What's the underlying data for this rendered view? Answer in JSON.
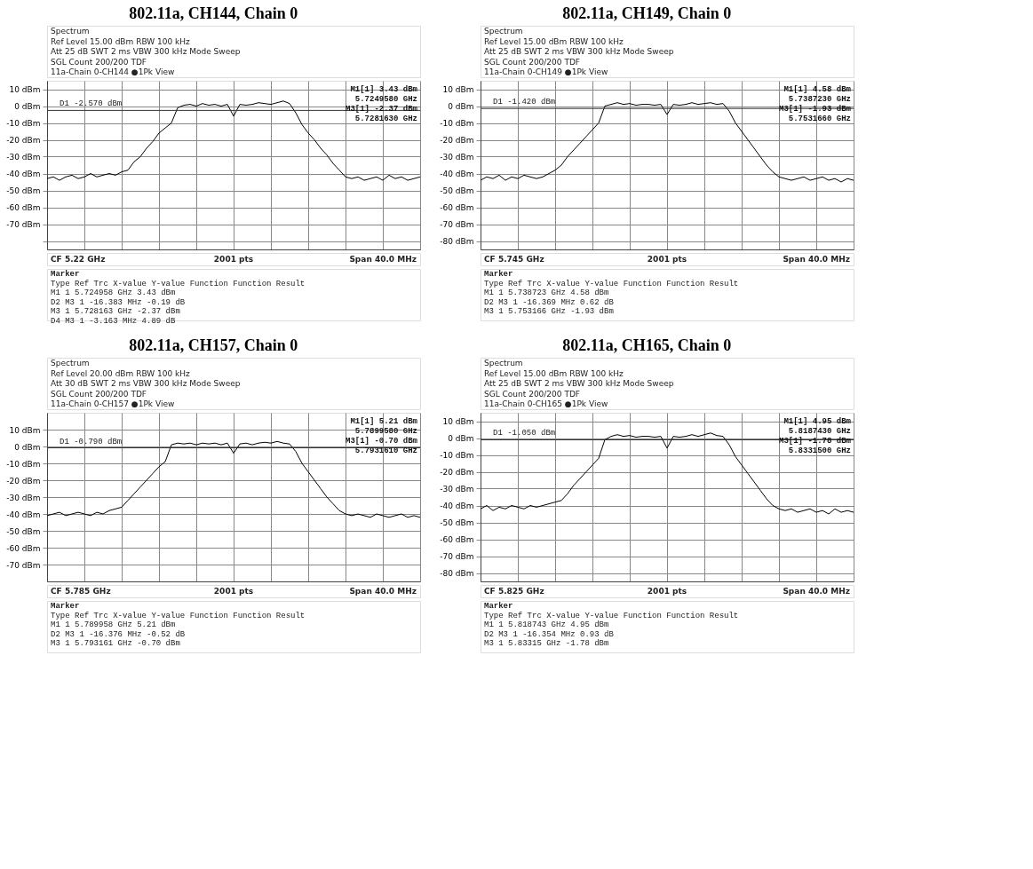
{
  "chart_data": [
    {
      "type": "line",
      "title": "802.11a, CH144, Chain 0",
      "color": "#000000",
      "grid": true,
      "ylim": [
        -85,
        15
      ],
      "yticks": [
        {
          "value": 10,
          "label": "10 dBm"
        },
        {
          "value": 0,
          "label": "0 dBm"
        },
        {
          "value": -10,
          "label": "-10 dBm"
        },
        {
          "value": -20,
          "label": "-20 dBm"
        },
        {
          "value": -30,
          "label": "-30 dBm"
        },
        {
          "value": -40,
          "label": "-40 dBm"
        },
        {
          "value": -50,
          "label": "-50 dBm"
        },
        {
          "value": -60,
          "label": "-60 dBm"
        },
        {
          "value": -70,
          "label": "-70 dBm"
        },
        {
          "value": -80,
          "label": null
        }
      ],
      "categories": [
        null,
        null,
        null,
        null,
        null,
        null,
        null,
        null,
        null,
        null,
        null,
        null,
        null,
        null,
        null,
        null,
        null,
        null,
        null,
        null,
        null,
        null,
        null,
        null,
        null,
        null,
        null,
        null,
        null,
        null,
        null,
        null,
        null,
        null,
        null,
        null,
        null,
        null,
        null,
        null,
        null,
        null,
        null,
        null,
        null,
        null,
        null,
        null,
        null,
        null,
        null,
        null,
        null,
        null,
        null,
        null,
        null,
        null,
        null,
        null,
        null
      ],
      "values": [
        -43,
        -42,
        -44,
        -42,
        -41,
        -43,
        -42,
        -40,
        -42,
        -41,
        -40,
        -41,
        -39,
        -38,
        -33,
        -30,
        -25,
        -21,
        -16,
        -13,
        -10,
        -1,
        0.5,
        1,
        0,
        1.5,
        0.5,
        1,
        0,
        1,
        -6,
        1,
        0.5,
        1,
        2,
        1.5,
        1,
        2,
        3,
        1.5,
        -4,
        -11,
        -16,
        -20,
        -25,
        -29,
        -34,
        -38,
        -42,
        -43,
        -42,
        -44,
        -43,
        -42,
        -44,
        -41,
        -43,
        -42,
        -44,
        -43,
        -42
      ],
      "ref_lines": [
        {
          "axis": "y",
          "value": -2.57,
          "label": "D1 -2.570 dBm"
        }
      ],
      "annotations": [
        "Spectrum",
        "Ref Level  15.00 dBm            RBW  100 kHz",
        "Att   25 dB   SWT  2 ms     VBW  300 kHz    Mode  Sweep",
        "SGL Count 200/200   TDF",
        "11a-Chain 0-CH144 ●1Pk View",
        "M1[1]        3.43 dBm",
        "5.7249580 GHz",
        "M3[1]       -2.37 dBm",
        "5.7281630 GHz",
        "CF 5.22 GHz",
        "2001 pts",
        "Span 40.0 MHz",
        "Marker",
        "Type  Ref  Trc      X-value        Y-value    Function   Function Result",
        " M1         1    5.724958 GHz     3.43 dBm",
        " D2   M3    1     -16.383 MHz    -0.19 dB",
        " M3         1    5.728163 GHz    -2.37 dBm",
        " D4   M3    1      -3.163 MHz     4.89 dB"
      ]
    },
    {
      "type": "line",
      "title": "802.11a, CH149, Chain 0",
      "color": "#000000",
      "grid": true,
      "ylim": [
        -85,
        15
      ],
      "yticks": [
        {
          "value": 10,
          "label": "10 dBm"
        },
        {
          "value": 0,
          "label": "0 dBm"
        },
        {
          "value": -10,
          "label": "-10 dBm"
        },
        {
          "value": -20,
          "label": "-20 dBm"
        },
        {
          "value": -30,
          "label": "-30 dBm"
        },
        {
          "value": -40,
          "label": "-40 dBm"
        },
        {
          "value": -50,
          "label": "-50 dBm"
        },
        {
          "value": -60,
          "label": "-60 dBm"
        },
        {
          "value": -70,
          "label": "-70 dBm"
        },
        {
          "value": -80,
          "label": "-80 dBm"
        }
      ],
      "categories": [
        null,
        null,
        null,
        null,
        null,
        null,
        null,
        null,
        null,
        null,
        null,
        null,
        null,
        null,
        null,
        null,
        null,
        null,
        null,
        null,
        null,
        null,
        null,
        null,
        null,
        null,
        null,
        null,
        null,
        null,
        null,
        null,
        null,
        null,
        null,
        null,
        null,
        null,
        null,
        null,
        null,
        null,
        null,
        null,
        null,
        null,
        null,
        null,
        null,
        null,
        null,
        null,
        null,
        null,
        null,
        null,
        null,
        null,
        null,
        null,
        null
      ],
      "values": [
        -44,
        -42,
        -43,
        -41,
        -44,
        -42,
        -43,
        -41,
        -42,
        -43,
        -42,
        -40,
        -38,
        -35,
        -30,
        -26,
        -22,
        -18,
        -14,
        -10,
        0,
        1,
        2,
        1,
        1.5,
        0.5,
        1,
        1,
        0.5,
        1,
        -5,
        1,
        0.5,
        1,
        2,
        1,
        1.5,
        2,
        1,
        1.5,
        -3,
        -10,
        -15,
        -20,
        -25,
        -30,
        -35,
        -39,
        -42,
        -43,
        -44,
        -43,
        -42,
        -44,
        -43,
        -42,
        -44,
        -43,
        -45,
        -43,
        -44
      ],
      "ref_lines": [
        {
          "axis": "y",
          "value": -1.42,
          "label": "D1 -1.420 dBm"
        }
      ],
      "annotations": [
        "Spectrum",
        "Ref Level  15.00 dBm            RBW  100 kHz",
        "Att   25 dB   SWT  2 ms     VBW  300 kHz    Mode  Sweep",
        "SGL Count 200/200   TDF",
        "11a-Chain 0-CH149 ●1Pk View",
        "M1[1]        4.58 dBm",
        "5.7387230 GHz",
        "M3[1]       -1.93 dBm",
        "5.7531660 GHz",
        "CF 5.745 GHz",
        "2001 pts",
        "Span 40.0 MHz",
        "Marker",
        "Type  Ref  Trc      X-value        Y-value    Function   Function Result",
        " M1         1    5.738723 GHz     4.58 dBm",
        " D2   M3    1     -16.369 MHz     0.62 dB",
        " M3         1    5.753166 GHz    -1.93 dBm"
      ]
    },
    {
      "type": "line",
      "title": "802.11a, CH157, Chain 0",
      "color": "#000000",
      "grid": true,
      "ylim": [
        -80,
        20
      ],
      "yticks": [
        {
          "value": 10,
          "label": "10 dBm"
        },
        {
          "value": 0,
          "label": "0 dBm"
        },
        {
          "value": -10,
          "label": "-10 dBm"
        },
        {
          "value": -20,
          "label": "-20 dBm"
        },
        {
          "value": -30,
          "label": "-30 dBm"
        },
        {
          "value": -40,
          "label": "-40 dBm"
        },
        {
          "value": -50,
          "label": "-50 dBm"
        },
        {
          "value": -60,
          "label": "-60 dBm"
        },
        {
          "value": -70,
          "label": "-70 dBm"
        }
      ],
      "categories": [
        null,
        null,
        null,
        null,
        null,
        null,
        null,
        null,
        null,
        null,
        null,
        null,
        null,
        null,
        null,
        null,
        null,
        null,
        null,
        null,
        null,
        null,
        null,
        null,
        null,
        null,
        null,
        null,
        null,
        null,
        null,
        null,
        null,
        null,
        null,
        null,
        null,
        null,
        null,
        null,
        null,
        null,
        null,
        null,
        null,
        null,
        null,
        null,
        null,
        null,
        null,
        null,
        null,
        null,
        null,
        null,
        null,
        null,
        null,
        null,
        null
      ],
      "values": [
        -41,
        -40,
        -39,
        -41,
        -40,
        -39,
        -40,
        -41,
        -39,
        -40,
        -38,
        -37,
        -36,
        -32,
        -28,
        -24,
        -20,
        -16,
        -12,
        -9,
        1,
        2,
        1.5,
        2,
        1,
        2,
        1.5,
        2,
        1,
        2,
        -4,
        1.5,
        2,
        1,
        2,
        2.5,
        2,
        3,
        2,
        1.5,
        -3,
        -10,
        -15,
        -20,
        -25,
        -30,
        -34,
        -38,
        -40,
        -41,
        -40,
        -41,
        -42,
        -40,
        -41,
        -42,
        -41,
        -40,
        -42,
        -41,
        -42
      ],
      "ref_lines": [
        {
          "axis": "y",
          "value": -0.79,
          "label": "D1 -0.790 dBm"
        }
      ],
      "annotations": [
        "Spectrum",
        "Ref Level  20.00 dBm            RBW  100 kHz",
        "Att   30 dB   SWT  2 ms     VBW  300 kHz    Mode  Sweep",
        "SGL Count 200/200   TDF",
        "11a-Chain 0-CH157 ●1Pk View",
        "M1[1]        5.21 dBm",
        "5.7899580 GHz",
        "M3[1]       -0.70 dBm",
        "5.7931610 GHz",
        "CF 5.785 GHz",
        "2001 pts",
        "Span 40.0 MHz",
        "Marker",
        "Type  Ref  Trc      X-value        Y-value    Function   Function Result",
        " M1         1    5.789958 GHz     5.21 dBm",
        " D2   M3    1     -16.376 MHz    -0.52 dB",
        " M3         1    5.793161 GHz    -0.70 dBm"
      ]
    },
    {
      "type": "line",
      "title": "802.11a, CH165, Chain 0",
      "color": "#000000",
      "grid": true,
      "ylim": [
        -85,
        15
      ],
      "yticks": [
        {
          "value": 10,
          "label": "10 dBm"
        },
        {
          "value": 0,
          "label": "0 dBm"
        },
        {
          "value": -10,
          "label": "-10 dBm"
        },
        {
          "value": -20,
          "label": "-20 dBm"
        },
        {
          "value": -30,
          "label": "-30 dBm"
        },
        {
          "value": -40,
          "label": "-40 dBm"
        },
        {
          "value": -50,
          "label": "-50 dBm"
        },
        {
          "value": -60,
          "label": "-60 dBm"
        },
        {
          "value": -70,
          "label": "-70 dBm"
        },
        {
          "value": -80,
          "label": "-80 dBm"
        }
      ],
      "categories": [
        null,
        null,
        null,
        null,
        null,
        null,
        null,
        null,
        null,
        null,
        null,
        null,
        null,
        null,
        null,
        null,
        null,
        null,
        null,
        null,
        null,
        null,
        null,
        null,
        null,
        null,
        null,
        null,
        null,
        null,
        null,
        null,
        null,
        null,
        null,
        null,
        null,
        null,
        null,
        null,
        null,
        null,
        null,
        null,
        null,
        null,
        null,
        null,
        null,
        null,
        null,
        null,
        null,
        null,
        null,
        null,
        null,
        null,
        null,
        null,
        null
      ],
      "values": [
        -42,
        -40,
        -43,
        -41,
        -42,
        -40,
        -41,
        -42,
        -40,
        -41,
        -40,
        -39,
        -38,
        -37,
        -33,
        -28,
        -24,
        -20,
        -16,
        -12,
        -1,
        1,
        2,
        1,
        1.5,
        0.5,
        1,
        1,
        0.5,
        1,
        -6,
        1,
        0.5,
        1,
        2,
        1,
        2,
        3,
        1.5,
        1,
        -4,
        -11,
        -16,
        -21,
        -26,
        -31,
        -36,
        -40,
        -42,
        -43,
        -42,
        -44,
        -43,
        -42,
        -44,
        -43,
        -45,
        -42,
        -44,
        -43,
        -44
      ],
      "ref_lines": [
        {
          "axis": "y",
          "value": -1.05,
          "label": "D1 -1.050 dBm"
        }
      ],
      "annotations": [
        "Spectrum",
        "Ref Level  15.00 dBm            RBW  100 kHz",
        "Att   25 dB   SWT  2 ms     VBW  300 kHz    Mode  Sweep",
        "SGL Count 200/200   TDF",
        "11a-Chain 0-CH165 ●1Pk View",
        "M1[1]        4.95 dBm",
        "5.8187430 GHz",
        "M3[1]       -1.78 dBm",
        "5.8331500 GHz",
        "CF 5.825 GHz",
        "2001 pts",
        "Span 40.0 MHz",
        "Marker",
        "Type  Ref  Trc      X-value        Y-value    Function   Function Result",
        " M1         1    5.818743 GHz     4.95 dBm",
        " D2   M3    1     -16.354 MHz     0.93 dB",
        " M3         1     5.83315 GHz    -1.78 dBm"
      ]
    }
  ]
}
